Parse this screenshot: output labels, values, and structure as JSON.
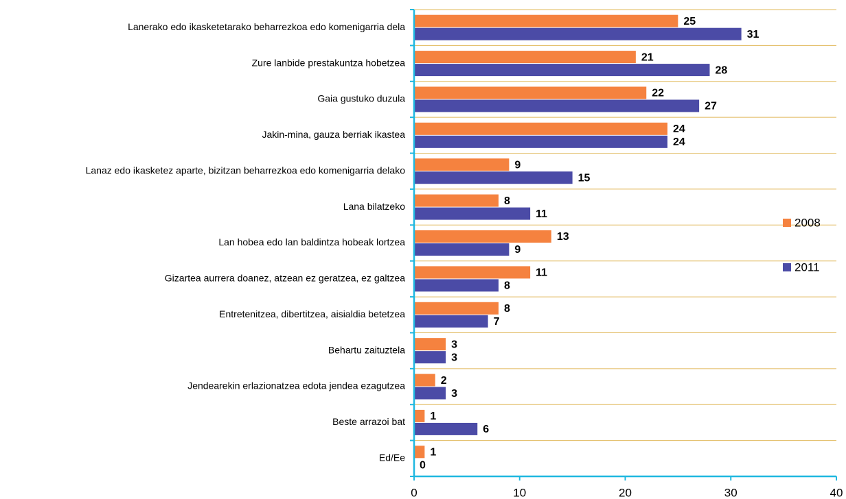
{
  "chart_data": {
    "type": "hbar",
    "categories": [
      "Lanerako edo ikasketetarako beharrezkoa edo komenigarria dela",
      "Zure lanbide prestakuntza hobetzea",
      "Gaia gustuko duzula",
      "Jakin-mina, gauza berriak ikastea",
      "Lanaz edo ikasketez aparte, bizitzan beharrezkoa edo komenigarria delako",
      "Lana bilatzeko",
      "Lan hobea edo lan baldintza hobeak lortzea",
      "Gizartea aurrera doanez, atzean ez geratzea, ez galtzea",
      "Entretenitzea, dibertitzea, aisialdia betetzea",
      "Behartu zaituztela",
      "Jendearekin erlazionatzea edota jendea ezagutzea",
      "Beste arrazoi bat",
      "Ed/Ee"
    ],
    "series": [
      {
        "name": "2008",
        "color": "#f5823f",
        "values": [
          25,
          21,
          22,
          24,
          9,
          8,
          13,
          11,
          8,
          3,
          2,
          1,
          1
        ]
      },
      {
        "name": "2011",
        "color": "#4b4ba6",
        "values": [
          31,
          28,
          27,
          24,
          15,
          11,
          9,
          8,
          7,
          3,
          3,
          6,
          0
        ]
      }
    ],
    "xlim": [
      0,
      40
    ],
    "xticks": [
      0,
      10,
      20,
      30,
      40
    ],
    "legend": "right"
  }
}
